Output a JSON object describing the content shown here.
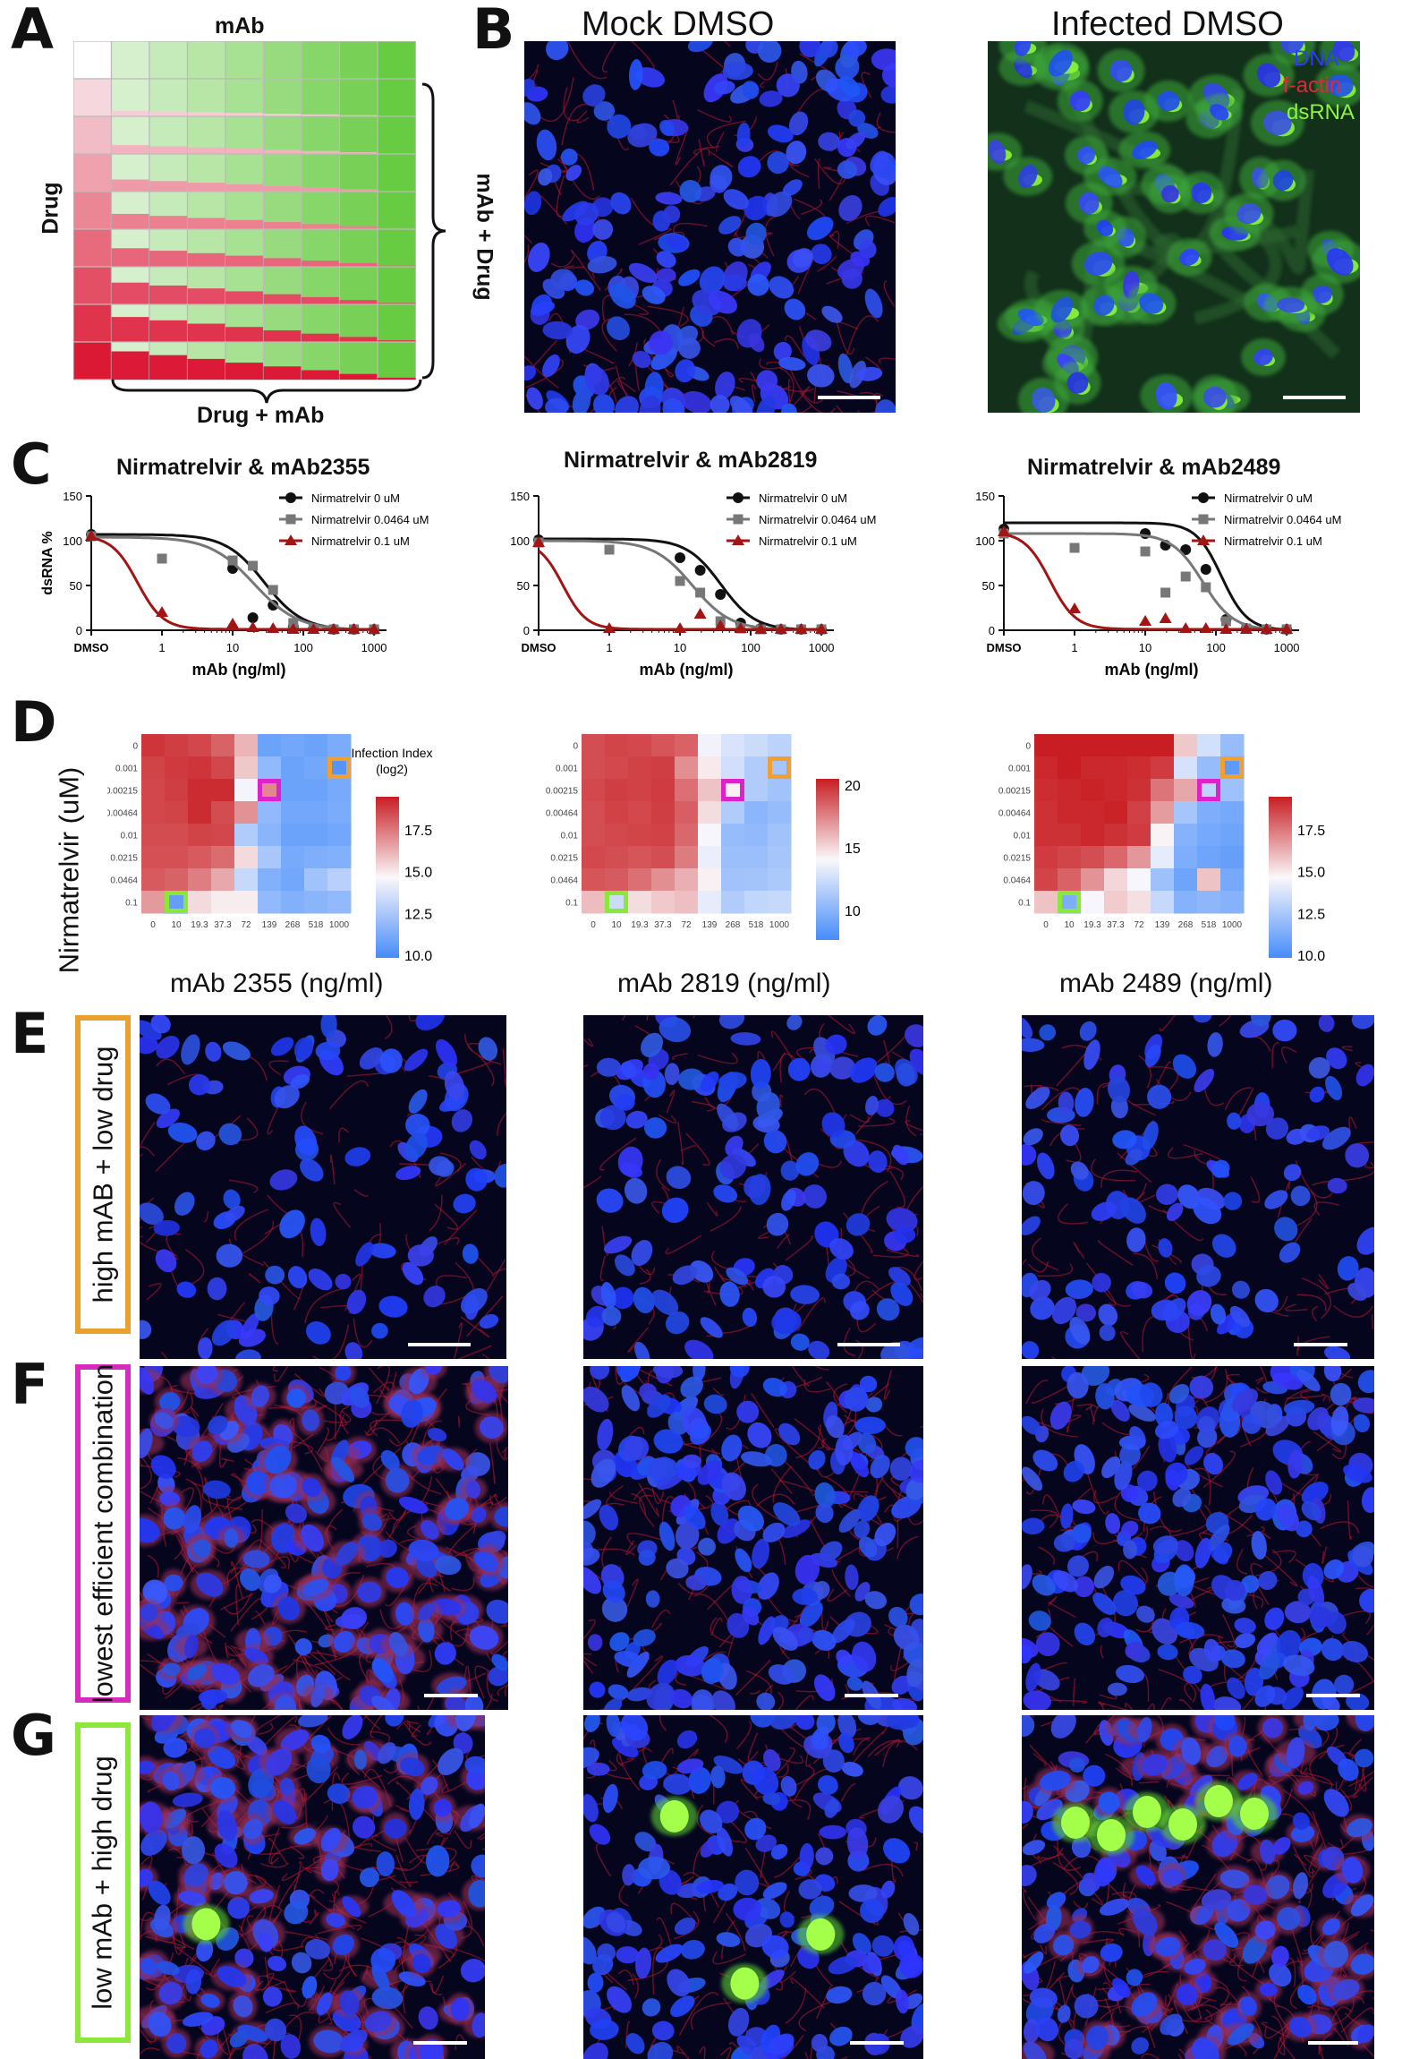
{
  "panels": {
    "A": "A",
    "B": "B",
    "C": "C",
    "D": "D",
    "E": "E",
    "F": "F",
    "G": "G"
  },
  "panelA": {
    "top_label": "mAb",
    "left_label": "Drug",
    "right_label": "mAb + Drug",
    "bottom_label": "Drug + mAb"
  },
  "panelB": {
    "mock_title": "Mock DMSO",
    "infected_title": "Infected DMSO",
    "legend": [
      "DNA",
      "f-actin",
      "dsRNA"
    ],
    "legend_colors": [
      "#2a3cff",
      "#e8243a",
      "#8cf53c"
    ]
  },
  "chart_data": [
    {
      "type": "line",
      "title": "Nirmatrelvir & mAb2355",
      "xlabel": "mAb (ng/ml)",
      "ylabel": "dsRNA %",
      "xscale": "log",
      "x_ticks": [
        "DMSO",
        "1",
        "10",
        "100",
        "1000"
      ],
      "y_ticks": [
        "0",
        "50",
        "100",
        "150"
      ],
      "ylim": [
        0,
        150
      ],
      "legend": [
        "Nirmatrelvir 0 uM",
        "Nirmatrelvir 0.0464 uM",
        "Nirmatrelvir 0.1 uM"
      ],
      "series": [
        {
          "name": "Nirmatrelvir 0 uM",
          "color": "#111111",
          "marker": "circle",
          "x": [
            0.1,
            10,
            19.3,
            37.3,
            72,
            139,
            268,
            518,
            1000
          ],
          "y": [
            107,
            69,
            14,
            28,
            4,
            2,
            1,
            1,
            1
          ],
          "fit": {
            "top": 107,
            "bottom": 0,
            "ic50": 28,
            "hill": 1.6
          }
        },
        {
          "name": "Nirmatrelvir 0.0464 uM",
          "color": "#777777",
          "marker": "square",
          "x": [
            0.1,
            1,
            10,
            19.3,
            37.3,
            72,
            139,
            268,
            518,
            1000
          ],
          "y": [
            105,
            80,
            78,
            72,
            45,
            8,
            2,
            1,
            1,
            1
          ],
          "fit": {
            "top": 104,
            "bottom": 0,
            "ic50": 20,
            "hill": 1.4
          }
        },
        {
          "name": "Nirmatrelvir 0.1 uM",
          "color": "#a31515",
          "marker": "triangle",
          "x": [
            0.1,
            1,
            10,
            19.3,
            37.3,
            72,
            139,
            268,
            518,
            1000
          ],
          "y": [
            105,
            20,
            7,
            3,
            2,
            1,
            1,
            1,
            1,
            1
          ],
          "fit": {
            "top": 106,
            "bottom": 1,
            "ic50": 0.45,
            "hill": 2.4
          }
        }
      ]
    },
    {
      "type": "line",
      "title": "Nirmatrelvir & mAb2819",
      "xlabel": "mAb (ng/ml)",
      "ylabel": "",
      "xscale": "log",
      "x_ticks": [
        "DMSO",
        "1",
        "10",
        "100",
        "1000"
      ],
      "y_ticks": [
        "0",
        "50",
        "100",
        "150"
      ],
      "ylim": [
        0,
        150
      ],
      "legend": [
        "Nirmatrelvir 0 uM",
        "Nirmatrelvir 0.0464 uM",
        "Nirmatrelvir 0.1 uM"
      ],
      "series": [
        {
          "name": "Nirmatrelvir 0 uM",
          "color": "#111111",
          "marker": "circle",
          "x": [
            0.1,
            10,
            19.3,
            37.3,
            72,
            139,
            268,
            518,
            1000
          ],
          "y": [
            101,
            81,
            67,
            40,
            8,
            2,
            1,
            1,
            1
          ],
          "fit": {
            "top": 102,
            "bottom": 0,
            "ic50": 38,
            "hill": 1.8
          }
        },
        {
          "name": "Nirmatrelvir 0.0464 uM",
          "color": "#777777",
          "marker": "square",
          "x": [
            0.1,
            1,
            10,
            19.3,
            37.3,
            72,
            139,
            268,
            518,
            1000
          ],
          "y": [
            98,
            90,
            55,
            42,
            10,
            2,
            1,
            1,
            1,
            1
          ],
          "fit": {
            "top": 100,
            "bottom": 0,
            "ic50": 15,
            "hill": 1.6
          }
        },
        {
          "name": "Nirmatrelvir 0.1 uM",
          "color": "#a31515",
          "marker": "triangle",
          "x": [
            0.1,
            1,
            10,
            19.3,
            37.3,
            72,
            139,
            268,
            518,
            1000
          ],
          "y": [
            98,
            2,
            2,
            18,
            5,
            2,
            1,
            1,
            1,
            1
          ],
          "fit": {
            "top": 100,
            "bottom": 1,
            "ic50": 0.22,
            "hill": 2.6
          }
        }
      ]
    },
    {
      "type": "line",
      "title": "Nirmatrelvir & mAb2489",
      "xlabel": "mAb (ng/ml)",
      "ylabel": "",
      "xscale": "log",
      "x_ticks": [
        "DMSO",
        "1",
        "10",
        "100",
        "1000"
      ],
      "y_ticks": [
        "0",
        "50",
        "100",
        "150"
      ],
      "ylim": [
        0,
        150
      ],
      "legend": [
        "Nirmatrelvir 0 uM",
        "Nirmatrelvir 0.0464 uM",
        "Nirmatrelvir 0.1 uM"
      ],
      "series": [
        {
          "name": "Nirmatrelvir 0 uM",
          "color": "#111111",
          "marker": "circle",
          "x": [
            0.1,
            10,
            19.3,
            37.3,
            72,
            139,
            268,
            518,
            1000
          ],
          "y": [
            113,
            108,
            95,
            90,
            68,
            12,
            2,
            1,
            1
          ],
          "fit": {
            "top": 120,
            "bottom": 0,
            "ic50": 120,
            "hill": 2.4
          }
        },
        {
          "name": "Nirmatrelvir 0.0464 uM",
          "color": "#777777",
          "marker": "square",
          "x": [
            0.1,
            1,
            10,
            19.3,
            37.3,
            72,
            139,
            268,
            518,
            1000
          ],
          "y": [
            108,
            92,
            88,
            42,
            60,
            48,
            10,
            2,
            1,
            1
          ],
          "fit": {
            "top": 108,
            "bottom": 0,
            "ic50": 65,
            "hill": 2.0
          }
        },
        {
          "name": "Nirmatrelvir 0.1 uM",
          "color": "#a31515",
          "marker": "triangle",
          "x": [
            0.1,
            1,
            10,
            19.3,
            37.3,
            72,
            139,
            268,
            518,
            1000
          ],
          "y": [
            110,
            24,
            10,
            13,
            2,
            2,
            1,
            1,
            1,
            1
          ],
          "fit": {
            "top": 110,
            "bottom": 1,
            "ic50": 0.45,
            "hill": 2.4
          }
        }
      ]
    },
    {
      "type": "heatmap",
      "xlabel": "mAb 2355 (ng/ml)",
      "ylabel": "Nirmatrelvir (uM)",
      "x_categories": [
        "0",
        "10",
        "19.3",
        "37.3",
        "72",
        "139",
        "268",
        "518",
        "1000"
      ],
      "y_categories": [
        "0",
        "0.001",
        "0.00215",
        "0.00464",
        "0.01",
        "0.0215",
        "0.0464",
        "0.1"
      ],
      "colorbar_title": "Infection Index\n(log2)",
      "colorbar_ticks": [
        "17.5",
        "15.0",
        "12.5",
        "10.0"
      ],
      "vmin": 10,
      "vmax": 19.5,
      "values": [
        [
          19.0,
          18.8,
          18.6,
          18.0,
          16.2,
          11.0,
          11.2,
          11.0,
          11.4
        ],
        [
          18.7,
          18.9,
          19.0,
          18.6,
          15.8,
          12.0,
          11.0,
          11.2,
          10.4
        ],
        [
          18.6,
          18.8,
          19.2,
          19.2,
          14.6,
          17.2,
          11.0,
          11.0,
          11.3
        ],
        [
          18.6,
          18.7,
          19.2,
          18.5,
          17.0,
          12.0,
          11.2,
          11.2,
          11.4
        ],
        [
          18.5,
          18.5,
          18.7,
          18.6,
          12.8,
          11.8,
          11.0,
          11.0,
          11.2
        ],
        [
          18.4,
          18.4,
          18.2,
          17.8,
          15.4,
          12.6,
          11.3,
          11.5,
          11.6
        ],
        [
          18.2,
          18.0,
          17.4,
          16.5,
          13.4,
          11.6,
          11.2,
          12.4,
          13.0
        ],
        [
          16.8,
          10.8,
          15.4,
          15.0,
          15.0,
          12.0,
          11.6,
          11.8,
          12.0
        ]
      ],
      "highlights": [
        {
          "row": 1,
          "col": 8,
          "color": "#f0a030"
        },
        {
          "row": 2,
          "col": 5,
          "color": "#dd22cc"
        },
        {
          "row": 7,
          "col": 1,
          "color": "#8ce838"
        }
      ]
    },
    {
      "type": "heatmap",
      "xlabel": "mAb 2819 (ng/ml)",
      "ylabel": "",
      "x_categories": [
        "0",
        "10",
        "19.3",
        "37.3",
        "72",
        "139",
        "268",
        "518",
        "1000"
      ],
      "y_categories": [
        "0",
        "0.001",
        "0.00215",
        "0.00464",
        "0.01",
        "0.0215",
        "0.0464",
        "0.1"
      ],
      "colorbar_title": "",
      "colorbar_ticks": [
        "20",
        "15",
        "10"
      ],
      "vmin": 7,
      "vmax": 20.5,
      "values": [
        [
          19.0,
          19.3,
          19.2,
          18.8,
          18.4,
          13.4,
          12.5,
          12.0,
          11.4
        ],
        [
          19.0,
          19.2,
          19.4,
          19.5,
          17.0,
          14.2,
          12.2,
          11.0,
          10.6
        ],
        [
          19.2,
          19.5,
          19.4,
          19.6,
          18.0,
          15.4,
          14.0,
          11.0,
          10.4
        ],
        [
          19.0,
          19.4,
          19.2,
          19.5,
          18.5,
          14.6,
          11.0,
          9.6,
          10.0
        ],
        [
          19.0,
          19.2,
          19.3,
          19.4,
          18.2,
          13.6,
          10.0,
          9.8,
          10.4
        ],
        [
          19.2,
          19.0,
          18.8,
          19.0,
          17.6,
          13.2,
          10.2,
          10.2,
          10.6
        ],
        [
          18.8,
          18.6,
          18.0,
          17.0,
          16.0,
          14.0,
          10.4,
          10.5,
          10.8
        ],
        [
          15.6,
          12.0,
          14.6,
          15.2,
          15.5,
          13.0,
          11.0,
          11.6,
          11.8
        ]
      ],
      "highlights": [
        {
          "row": 1,
          "col": 8,
          "color": "#f0a030"
        },
        {
          "row": 2,
          "col": 6,
          "color": "#dd22cc"
        },
        {
          "row": 7,
          "col": 1,
          "color": "#8ce838"
        }
      ]
    },
    {
      "type": "heatmap",
      "xlabel": "mAb 2489 (ng/ml)",
      "ylabel": "",
      "x_categories": [
        "0",
        "10",
        "19.3",
        "37.3",
        "72",
        "139",
        "268",
        "518",
        "1000"
      ],
      "y_categories": [
        "0",
        "0.001",
        "0.00215",
        "0.00464",
        "0.01",
        "0.0215",
        "0.0464",
        "0.1"
      ],
      "colorbar_title": "",
      "colorbar_ticks": [
        "17.5",
        "15.0",
        "12.5",
        "10.0"
      ],
      "vmin": 10,
      "vmax": 19,
      "values": [
        [
          19.0,
          19.0,
          19.0,
          19.5,
          19.0,
          19.0,
          15.5,
          13.5,
          12.0
        ],
        [
          18.8,
          19.0,
          18.8,
          18.8,
          18.7,
          18.4,
          13.6,
          12.0,
          10.6
        ],
        [
          18.7,
          18.8,
          18.9,
          18.8,
          18.6,
          17.2,
          16.2,
          13.0,
          12.2
        ],
        [
          18.6,
          18.8,
          18.8,
          18.9,
          18.3,
          16.4,
          12.4,
          11.4,
          11.2
        ],
        [
          18.6,
          18.6,
          18.8,
          18.6,
          18.4,
          14.6,
          11.6,
          11.2,
          11.0
        ],
        [
          18.4,
          18.2,
          18.0,
          17.5,
          16.5,
          14.0,
          11.4,
          11.0,
          10.8
        ],
        [
          18.2,
          17.6,
          16.6,
          15.2,
          14.4,
          12.2,
          11.0,
          15.6,
          11.2
        ],
        [
          15.6,
          11.4,
          14.4,
          15.4,
          15.0,
          13.2,
          11.6,
          11.8,
          11.6
        ]
      ],
      "highlights": [
        {
          "row": 1,
          "col": 8,
          "color": "#f0a030"
        },
        {
          "row": 2,
          "col": 7,
          "color": "#dd22cc"
        },
        {
          "row": 7,
          "col": 1,
          "color": "#8ce838"
        }
      ]
    }
  ],
  "row_labels": {
    "E": "high mAB + low drug",
    "F": "lowest efficient combination",
    "G": "low mAb + high drug"
  },
  "row_label_colors": {
    "E": "#e8a02e",
    "F": "#d62bbd",
    "G": "#8ce838"
  }
}
